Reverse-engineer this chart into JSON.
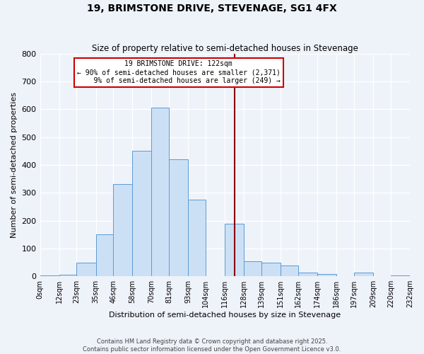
{
  "title": "19, BRIMSTONE DRIVE, STEVENAGE, SG1 4FX",
  "subtitle": "Size of property relative to semi-detached houses in Stevenage",
  "xlabel": "Distribution of semi-detached houses by size in Stevenage",
  "ylabel": "Number of semi-detached properties",
  "bin_edges": [
    0,
    12,
    23,
    35,
    46,
    58,
    70,
    81,
    93,
    104,
    116,
    128,
    139,
    151,
    162,
    174,
    186,
    197,
    209,
    220,
    232
  ],
  "bin_labels": [
    "0sqm",
    "12sqm",
    "23sqm",
    "35sqm",
    "46sqm",
    "58sqm",
    "70sqm",
    "81sqm",
    "93sqm",
    "104sqm",
    "116sqm",
    "128sqm",
    "139sqm",
    "151sqm",
    "162sqm",
    "174sqm",
    "186sqm",
    "197sqm",
    "209sqm",
    "220sqm",
    "232sqm"
  ],
  "counts": [
    2,
    5,
    48,
    150,
    330,
    450,
    605,
    420,
    275,
    0,
    188,
    55,
    50,
    38,
    12,
    8,
    0,
    12,
    0,
    3
  ],
  "bar_facecolor": "#cce0f5",
  "bar_edgecolor": "#5b9bd5",
  "vline_x": 122,
  "vline_color": "#8b0000",
  "annotation_text": "19 BRIMSTONE DRIVE: 122sqm\n← 90% of semi-detached houses are smaller (2,371)\n    9% of semi-detached houses are larger (249) →",
  "annotation_box_color": "#ffffff",
  "annotation_box_edgecolor": "#cc0000",
  "ylim": [
    0,
    800
  ],
  "yticks": [
    0,
    100,
    200,
    300,
    400,
    500,
    600,
    700,
    800
  ],
  "background_color": "#eef2f9",
  "grid_color": "#ffffff",
  "footer_line1": "Contains HM Land Registry data © Crown copyright and database right 2025.",
  "footer_line2": "Contains public sector information licensed under the Open Government Licence v3.0."
}
